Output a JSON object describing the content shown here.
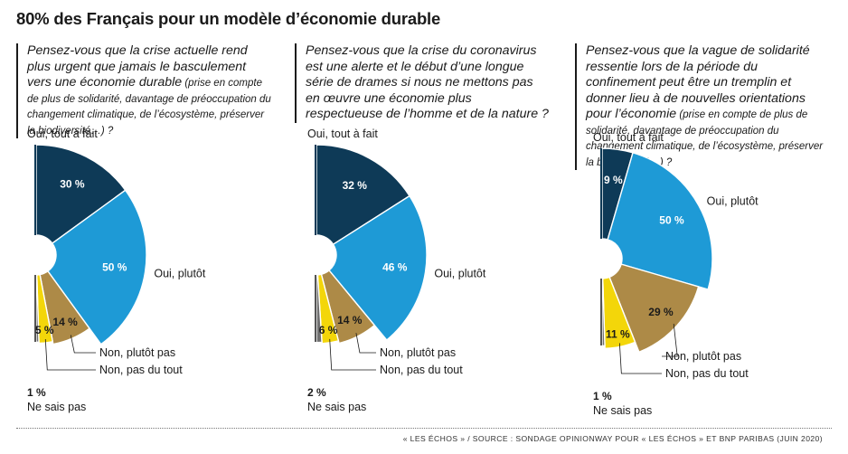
{
  "title": "80% des Français pour un modèle d’économie durable",
  "source": "« LES ÉCHOS » / SOURCE : SONDAGE OPINIONWAY POUR « LES ÉCHOS » ET BNP PARIBAS (JUIN 2020)",
  "panels": [
    {
      "question_main": "Pensez-vous que la crise actuelle rend plus urgent que jamais le basculement vers une économie durable",
      "question_note": " (prise en compte de plus de solidarité, davantage de préoccupation du changement climatique, de l’écosystème, préserver la biodiversité…) ?"
    },
    {
      "question_main": "Pensez-vous que la crise du coronavirus est une alerte et le début d’une longue série de drames si nous ne mettons pas en œuvre une économie plus respectueuse de l’homme et de la nature ?",
      "question_note": ""
    },
    {
      "question_main": "Pensez-vous que la vague de solidarité ressentie lors de la période du confinement peut être un tremplin et donner lieu à de nouvelles orientations pour l’économie",
      "question_note": " (prise en compte de plus de solidarité, davantage de préoccupation du changement climatique, de l’écosystème, préserver la biodiversité…) ?"
    }
  ],
  "colors": {
    "oui_tout_a_fait": "#0e3a57",
    "oui_plutot": "#1e9ad6",
    "non_plutot_pas": "#ad8a47",
    "non_pas_du_tout": "#f3d60a",
    "ne_sais_pas": "#707070"
  },
  "chart_data": [
    {
      "type": "pie",
      "categories": [
        "Oui, tout à fait",
        "Oui, plutôt",
        "Non, plutôt pas",
        "Non, pas du tout",
        "Ne sais pas"
      ],
      "values": [
        30,
        50,
        14,
        5,
        1
      ],
      "value_labels": [
        "30 %",
        "50 %",
        "14 %",
        "5 %",
        "1 %"
      ]
    },
    {
      "type": "pie",
      "categories": [
        "Oui, tout à fait",
        "Oui, plutôt",
        "Non, plutôt pas",
        "Non, pas du tout",
        "Ne sais pas"
      ],
      "values": [
        32,
        46,
        14,
        6,
        2
      ],
      "value_labels": [
        "32 %",
        "46 %",
        "14 %",
        "6 %",
        "2 %"
      ]
    },
    {
      "type": "pie",
      "categories": [
        "Oui, tout à fait",
        "Oui, plutôt",
        "Non, plutôt pas",
        "Non, pas du tout",
        "Ne sais pas"
      ],
      "values": [
        9,
        50,
        29,
        11,
        1
      ],
      "value_labels": [
        "9 %",
        "50 %",
        "29 %",
        "11 %",
        "1 %"
      ]
    }
  ]
}
